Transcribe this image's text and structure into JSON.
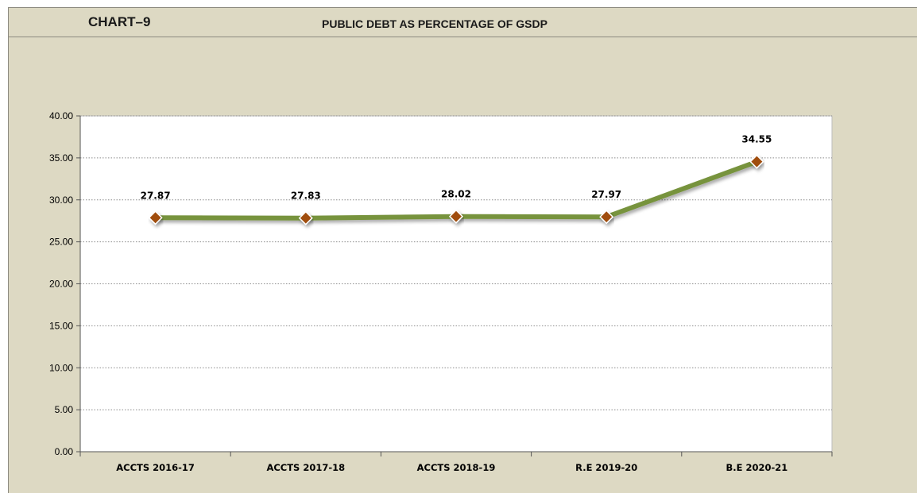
{
  "header": {
    "chart_number": "CHART–9",
    "title": "PUBLIC DEBT AS PERCENTAGE OF GSDP"
  },
  "colors": {
    "background": "#ddd9c3",
    "plot_area": "#ffffff",
    "line": "#77933c",
    "marker_fill": "#a04e10",
    "marker_edge": "#ffffff",
    "grid": "#8c8c8c"
  },
  "chart_data": {
    "type": "line",
    "title": "PUBLIC DEBT AS PERCENTAGE OF GSDP",
    "xlabel": "",
    "ylabel": "",
    "categories": [
      "ACCTS 2016-17",
      "ACCTS 2017-18",
      "ACCTS 2018-19",
      "R.E 2019-20",
      "B.E 2020-21"
    ],
    "series": [
      {
        "values": [
          27.87,
          27.83,
          28.02,
          27.97,
          34.55
        ]
      }
    ],
    "data_labels": [
      "27.87",
      "27.83",
      "28.02",
      "27.97",
      "34.55"
    ],
    "ylim": [
      0,
      40
    ],
    "yticks": [
      0,
      5,
      10,
      15,
      20,
      25,
      30,
      35,
      40
    ],
    "ytick_labels": [
      "0.00",
      "5.00",
      "10.00",
      "15.00",
      "20.00",
      "25.00",
      "30.00",
      "35.00",
      "40.00"
    ],
    "grid": true,
    "grid_style": "dotted",
    "legend": "none",
    "marker": "diamond"
  }
}
